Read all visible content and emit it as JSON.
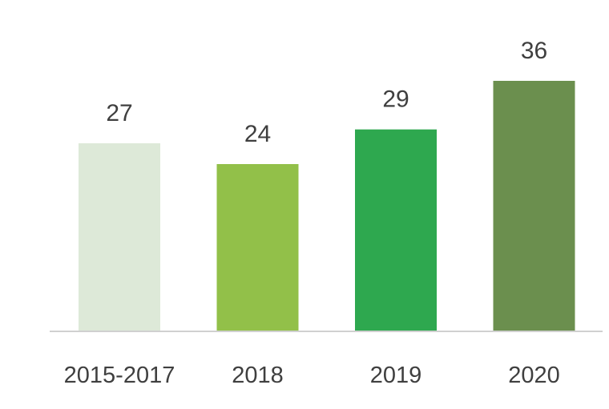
{
  "chart_data": {
    "type": "bar",
    "title": "",
    "xlabel": "",
    "ylabel": "",
    "categories": [
      "2015-2017",
      "2018",
      "2019",
      "2020"
    ],
    "values": [
      27,
      24,
      29,
      36
    ],
    "ylim": [
      0,
      36
    ],
    "grid": false,
    "legend": "none",
    "colors": [
      "#dde9d8",
      "#92c049",
      "#2ea84f",
      "#6b8f4e"
    ],
    "axis_color": "#d0d0d0",
    "label_color": "#3f3f3f"
  }
}
